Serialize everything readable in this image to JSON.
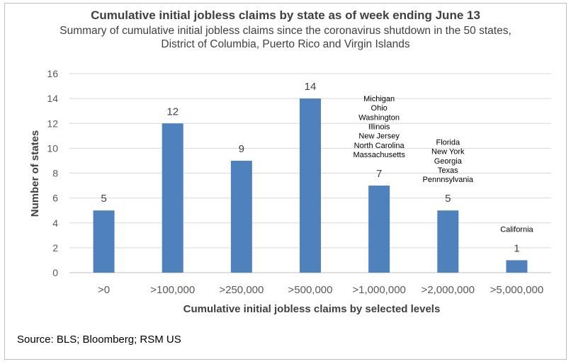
{
  "chart_data": {
    "type": "bar",
    "title": "Cumulative initial jobless claims by state as of week ending June 13",
    "subtitle": "Summary of cumulative initial jobless claims since the coronavirus shutdown in the 50 states, District of Columbia, Puerto Rico and Virgin Islands",
    "xlabel": "Cumulative initial jobless claims by selected levels",
    "ylabel": "Number of states",
    "categories": [
      ">0",
      ">100,000",
      ">250,000",
      ">500,000",
      ">1,000,000",
      ">2,000,000",
      ">5,000,000"
    ],
    "values": [
      5,
      12,
      9,
      14,
      7,
      5,
      1
    ],
    "ylim": [
      0,
      16
    ],
    "yticks": [
      0,
      2,
      4,
      6,
      8,
      10,
      12,
      14,
      16
    ],
    "grid": true,
    "bar_color": "#4f81bd",
    "annotations": [
      {
        "category": ">1,000,000",
        "states": [
          "Michigan",
          "Ohio",
          "Washington",
          "Illinois",
          "New Jersey",
          "North Carolina",
          "Massachusetts"
        ]
      },
      {
        "category": ">2,000,000",
        "states": [
          "Florida",
          "New York",
          "Georgia",
          "Texas",
          "Pennnsylvania"
        ]
      },
      {
        "category": ">5,000,000",
        "states": [
          "California"
        ]
      }
    ]
  },
  "source": "Source: BLS; Bloomberg; RSM US"
}
